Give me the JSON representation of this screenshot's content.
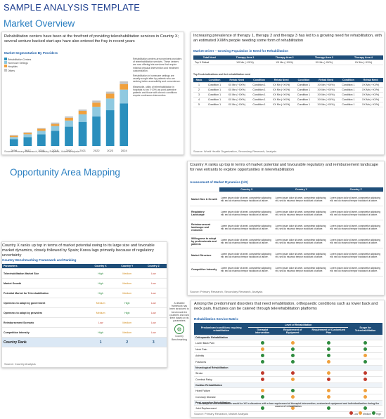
{
  "page_title": "SAMPLE ANALYSIS TEMPLATE",
  "sections": {
    "market_overview": "Market Overview",
    "opportunity": "Opportunity Area Mapping"
  },
  "panel1": {
    "intro": "Rehabilitation centers have been at the forefront of providing telerehabilitation services in Country X; several venture backed start-ups have also entered the fray in recent years",
    "chart_title": "Market Segmentation By Providers",
    "legend": [
      "Rehabilitation Centers",
      "Homecare Settings",
      "Hospitals",
      "Others"
    ],
    "legend_colors": [
      "#2a8fbd",
      "#8fc9e0",
      "#f0a03c",
      "#c4c4c4"
    ],
    "bullets": [
      "Rehabilitation centers are prominent providers of telerehabilitation services. These centers are now offering tele-services that require minimal physical intervention and treatment customization.",
      "Rehabilitation in homecare settings are usually sought after by patients who are seeking better accessibility and convenience.",
      "Meanwhile, utility of telerehabilitation in hospitals is low (~10%) as post-operative patients and those with chronic conditions require continuous intervention."
    ],
    "source": "Source: Primary Research, Industry Reports, Video Analysis"
  },
  "chart_data": {
    "type": "bar",
    "categories": [
      "2016",
      "2017",
      "2018",
      "2019",
      "2020",
      "2021",
      "2022",
      "2023",
      "2024"
    ],
    "series": [
      {
        "name": "Rehabilitation Centers",
        "values": [
          10,
          13,
          17,
          22,
          28,
          35,
          43,
          52,
          62
        ]
      },
      {
        "name": "Homecare Settings",
        "values": [
          3,
          4,
          5,
          7,
          9,
          11,
          14,
          17,
          20
        ]
      },
      {
        "name": "Hospitals",
        "values": [
          2,
          2,
          3,
          3,
          4,
          5,
          6,
          7,
          8
        ]
      },
      {
        "name": "Others",
        "values": [
          1,
          1,
          1,
          2,
          2,
          2,
          3,
          3,
          4
        ]
      }
    ],
    "ylim": [
      0,
      100
    ]
  },
  "panel2": {
    "heading": "Increasing prevalence of therapy 1, therapy 2 and therapy 3 has led to a growing need for rehabilitation, with an estimated XXMn people needing some form of rehabilitation",
    "table_title": "Market Driver – Growing Population in Need for Rehabilitation",
    "cols": [
      "Total Need",
      "Therapy Area 1",
      "Therapy Area 2",
      "Therapy Area 3",
      "Therapy Area 4"
    ],
    "row_label": "Top 5 Global",
    "row_values": [
      "XX Mn (~XX%)",
      "XX Mn (~XX%)",
      "XX Mn (~XX%)",
      "XX Mn (~XX%)"
    ],
    "sub_title": "Top 5 sub-indications and their rehabilitation need",
    "sub_cols": [
      "Rank",
      "Condition",
      "Rehab Need"
    ],
    "ranks": [
      "1",
      "2",
      "3",
      "4",
      "5"
    ],
    "condition": "Condition 1",
    "value": "XX Mn (~XX%)",
    "source": "Source: World Health Organization, Secondary Research, Analysis"
  },
  "panel3": {
    "heading": "Country X ranks up top in terms of market potential and favourable regulatory and reimbursement landscape for new entrants to explore opportunities in telerehabilitation",
    "table_title": "Assessment of Market Dynamics (1/3)",
    "cols": [
      "Country X",
      "Country Y",
      "Country Z"
    ],
    "rows": [
      "Market Size & Growth",
      "Regulatory Landscape",
      "Reimbursement landscape and evolution",
      "Willingness to adopt by professionals and patients",
      "Market Structure",
      "Competitive Intensity"
    ],
    "cell": "Lorem ipsum dolor sit amet, consectetur adipiscing elit, sed do eiusmod tempor incididunt ut labore.",
    "source": "Source: Primary Research, Secondary Research, Analysis"
  },
  "panel4": {
    "heading": "Country X ranks up top in terms of market potential owing to its large size and favorable market dynamics, closely followed by Spain; Korea lags primarily because of regulatory uncertainty",
    "table_title": "Country Benchmarking Framework and Ranking",
    "cols": [
      "Parameters",
      "Country X",
      "Country Y",
      "Country Z"
    ],
    "rows": [
      {
        "label": "Telerehabilitation Market Size",
        "v": [
          "High",
          "Medium",
          "Low"
        ]
      },
      {
        "label": "Market Growth",
        "v": [
          "High",
          "Medium",
          "Low"
        ]
      },
      {
        "label": "Potential Market for Telerehabilitation",
        "v": [
          "High",
          "Medium",
          "Low"
        ]
      },
      {
        "label": "Openness to adopt by government",
        "v": [
          "Medium",
          "High",
          "Low"
        ]
      },
      {
        "label": "Openness to adopt by providers",
        "v": [
          "Medium",
          "High",
          "Low"
        ]
      },
      {
        "label": "Reimbursement Scenario",
        "v": [
          "Low",
          "Medium",
          "Low"
        ]
      },
      {
        "label": "Competition Intensity",
        "v": [
          "High",
          "Medium",
          "Low"
        ]
      }
    ],
    "rank_label": "Country Rank",
    "ranks": [
      "1",
      "2",
      "3"
    ],
    "callout": "A detailed framework has been structured to benchmark the countries and rank them based on its parameters",
    "callout_label": "Country Benchmarking",
    "source": "Source: Country Analysis"
  },
  "panel5": {
    "heading": "Among the predominant disorders that need rehabilitation, orthopaedic conditions such as lower back and neck pain, fractures can be catered through telerehabilitation platforms",
    "table_title": "Rehabilitation Service Matrix",
    "cols": [
      "Predominant conditions requiring rehabilitation",
      "Therapist intervention",
      "Requirement of Equipment",
      "Requirement of Customized Plan",
      "Scope for Telerehabilitation"
    ],
    "group_header": "Level of Rehabilitation",
    "groups": [
      {
        "name": "Orthopaedic Rehabilitation",
        "items": [
          "Lower Back Pain",
          "Neck Pain",
          "Arthritis",
          "Fractures"
        ]
      },
      {
        "name": "Neurological Rehabilitation",
        "items": [
          "Stroke",
          "Cerebral Palsy"
        ]
      },
      {
        "name": "Cardiac Rehabilitation",
        "items": [
          "Heart Failure",
          "Coronary Disease"
        ]
      },
      {
        "name": "Post-operative Rehabilitation",
        "items": [
          "Joint Replacement"
        ]
      }
    ],
    "footnote": "The scope of telerehabilitation would be XX in disorders with a low requirement of therapist intervention, customized equipment and individualization during the course of rehabilitation",
    "legend": [
      "Low",
      "Medium",
      "High"
    ],
    "source": "Source: Primary Research, Market Analysis"
  }
}
